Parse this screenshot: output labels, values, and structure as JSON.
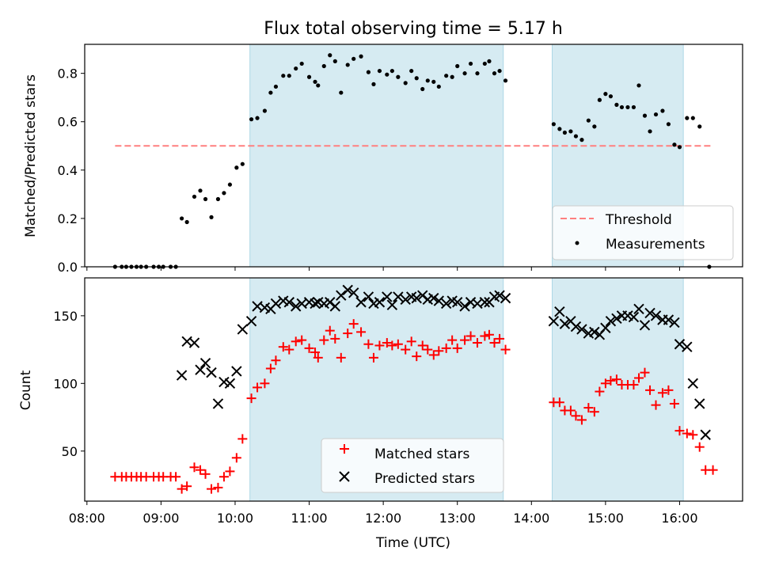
{
  "chart_data": {
    "type": "scatter",
    "title": "Flux total observing time = 5.17 h",
    "xlabel": "Time (UTC)",
    "x_unit": "hours UTC",
    "xlim": [
      7.97,
      16.85
    ],
    "x_ticks": [
      {
        "value": 8,
        "label": "08:00"
      },
      {
        "value": 9,
        "label": "09:00"
      },
      {
        "value": 10,
        "label": "10:00"
      },
      {
        "value": 11,
        "label": "11:00"
      },
      {
        "value": 12,
        "label": "12:00"
      },
      {
        "value": 13,
        "label": "13:00"
      },
      {
        "value": 14,
        "label": "14:00"
      },
      {
        "value": 15,
        "label": "15:00"
      },
      {
        "value": 16,
        "label": "16:00"
      }
    ],
    "shaded_intervals": [
      [
        10.2,
        13.62
      ],
      [
        14.28,
        16.05
      ]
    ],
    "top_panel": {
      "ylabel": "Matched/Predicted stars",
      "ylim": [
        0,
        0.92
      ],
      "y_ticks": [
        {
          "value": 0,
          "label": "0.0"
        },
        {
          "value": 0.2,
          "label": "0.2"
        },
        {
          "value": 0.4,
          "label": "0.4"
        },
        {
          "value": 0.6,
          "label": "0.6"
        },
        {
          "value": 0.8,
          "label": "0.8"
        }
      ],
      "threshold": {
        "name": "Threshold",
        "y": 0.5,
        "x_range": [
          8.38,
          16.45
        ],
        "color": "#ff7f7f"
      },
      "measurements": {
        "name": "Measurements",
        "color": "#000000",
        "points": [
          [
            8.38,
            0.0
          ],
          [
            8.47,
            0.0
          ],
          [
            8.53,
            0.0
          ],
          [
            8.6,
            0.0
          ],
          [
            8.67,
            0.0
          ],
          [
            8.73,
            0.0
          ],
          [
            8.8,
            0.0
          ],
          [
            8.9,
            0.0
          ],
          [
            8.97,
            0.0
          ],
          [
            9.03,
            0.0
          ],
          [
            9.13,
            0.0
          ],
          [
            9.2,
            0.0
          ],
          [
            9.28,
            0.2
          ],
          [
            9.35,
            0.185
          ],
          [
            9.45,
            0.29
          ],
          [
            9.53,
            0.315
          ],
          [
            9.6,
            0.28
          ],
          [
            9.68,
            0.205
          ],
          [
            9.77,
            0.28
          ],
          [
            9.85,
            0.305
          ],
          [
            9.93,
            0.34
          ],
          [
            10.02,
            0.41
          ],
          [
            10.1,
            0.425
          ],
          [
            10.22,
            0.61
          ],
          [
            10.3,
            0.615
          ],
          [
            10.4,
            0.645
          ],
          [
            10.48,
            0.72
          ],
          [
            10.55,
            0.745
          ],
          [
            10.65,
            0.79
          ],
          [
            10.73,
            0.79
          ],
          [
            10.82,
            0.82
          ],
          [
            10.9,
            0.84
          ],
          [
            11.0,
            0.785
          ],
          [
            11.08,
            0.765
          ],
          [
            11.12,
            0.75
          ],
          [
            11.2,
            0.83
          ],
          [
            11.28,
            0.875
          ],
          [
            11.35,
            0.85
          ],
          [
            11.43,
            0.72
          ],
          [
            11.52,
            0.835
          ],
          [
            11.6,
            0.86
          ],
          [
            11.7,
            0.87
          ],
          [
            11.8,
            0.805
          ],
          [
            11.87,
            0.755
          ],
          [
            11.95,
            0.81
          ],
          [
            12.05,
            0.795
          ],
          [
            12.12,
            0.81
          ],
          [
            12.2,
            0.785
          ],
          [
            12.3,
            0.76
          ],
          [
            12.38,
            0.81
          ],
          [
            12.45,
            0.78
          ],
          [
            12.53,
            0.735
          ],
          [
            12.6,
            0.77
          ],
          [
            12.68,
            0.765
          ],
          [
            12.75,
            0.745
          ],
          [
            12.85,
            0.79
          ],
          [
            12.93,
            0.785
          ],
          [
            13.0,
            0.83
          ],
          [
            13.1,
            0.8
          ],
          [
            13.18,
            0.84
          ],
          [
            13.27,
            0.8
          ],
          [
            13.37,
            0.84
          ],
          [
            13.43,
            0.85
          ],
          [
            13.5,
            0.8
          ],
          [
            13.57,
            0.81
          ],
          [
            13.65,
            0.77
          ],
          [
            14.3,
            0.59
          ],
          [
            14.38,
            0.57
          ],
          [
            14.45,
            0.555
          ],
          [
            14.53,
            0.56
          ],
          [
            14.6,
            0.54
          ],
          [
            14.68,
            0.525
          ],
          [
            14.77,
            0.605
          ],
          [
            14.85,
            0.58
          ],
          [
            14.92,
            0.69
          ],
          [
            15.0,
            0.715
          ],
          [
            15.07,
            0.705
          ],
          [
            15.15,
            0.67
          ],
          [
            15.22,
            0.66
          ],
          [
            15.3,
            0.66
          ],
          [
            15.38,
            0.66
          ],
          [
            15.45,
            0.75
          ],
          [
            15.53,
            0.625
          ],
          [
            15.6,
            0.56
          ],
          [
            15.68,
            0.63
          ],
          [
            15.77,
            0.645
          ],
          [
            15.85,
            0.59
          ],
          [
            15.93,
            0.505
          ],
          [
            16.0,
            0.495
          ],
          [
            16.1,
            0.615
          ],
          [
            16.18,
            0.615
          ],
          [
            16.27,
            0.58
          ],
          [
            16.4,
            0.0
          ]
        ]
      },
      "legend": [
        "Threshold",
        "Measurements"
      ]
    },
    "bottom_panel": {
      "ylabel": "Count",
      "ylim": [
        13,
        178
      ],
      "y_ticks": [
        {
          "value": 50,
          "label": "50"
        },
        {
          "value": 100,
          "label": "100"
        },
        {
          "value": 150,
          "label": "150"
        }
      ],
      "series": [
        {
          "name": "Matched stars",
          "marker": "+",
          "color": "#ff0000",
          "points": [
            [
              8.38,
              31
            ],
            [
              8.47,
              31
            ],
            [
              8.53,
              31
            ],
            [
              8.6,
              31
            ],
            [
              8.67,
              31
            ],
            [
              8.73,
              31
            ],
            [
              8.8,
              31
            ],
            [
              8.9,
              31
            ],
            [
              8.97,
              31
            ],
            [
              9.03,
              31
            ],
            [
              9.13,
              31
            ],
            [
              9.2,
              31
            ],
            [
              9.28,
              22
            ],
            [
              9.35,
              24
            ],
            [
              9.45,
              38
            ],
            [
              9.53,
              36
            ],
            [
              9.6,
              33
            ],
            [
              9.68,
              22
            ],
            [
              9.77,
              23
            ],
            [
              9.85,
              31
            ],
            [
              9.93,
              35
            ],
            [
              10.02,
              45
            ],
            [
              10.1,
              59
            ],
            [
              10.22,
              89
            ],
            [
              10.3,
              97
            ],
            [
              10.4,
              100
            ],
            [
              10.48,
              111
            ],
            [
              10.55,
              117
            ],
            [
              10.65,
              127
            ],
            [
              10.73,
              125
            ],
            [
              10.82,
              131
            ],
            [
              10.9,
              132
            ],
            [
              11.0,
              126
            ],
            [
              11.08,
              123
            ],
            [
              11.12,
              119
            ],
            [
              11.2,
              132
            ],
            [
              11.28,
              139
            ],
            [
              11.35,
              133
            ],
            [
              11.43,
              119
            ],
            [
              11.52,
              137
            ],
            [
              11.6,
              144
            ],
            [
              11.7,
              138
            ],
            [
              11.8,
              129
            ],
            [
              11.87,
              119
            ],
            [
              11.95,
              128
            ],
            [
              12.05,
              130
            ],
            [
              12.12,
              128
            ],
            [
              12.2,
              129
            ],
            [
              12.3,
              125
            ],
            [
              12.38,
              131
            ],
            [
              12.45,
              120
            ],
            [
              12.53,
              128
            ],
            [
              12.6,
              125
            ],
            [
              12.68,
              121
            ],
            [
              12.75,
              124
            ],
            [
              12.85,
              126
            ],
            [
              12.93,
              132
            ],
            [
              13.0,
              126
            ],
            [
              13.1,
              132
            ],
            [
              13.18,
              135
            ],
            [
              13.27,
              130
            ],
            [
              13.37,
              135
            ],
            [
              13.43,
              136
            ],
            [
              13.5,
              130
            ],
            [
              13.57,
              133
            ],
            [
              13.65,
              125
            ],
            [
              14.3,
              86
            ],
            [
              14.38,
              86
            ],
            [
              14.45,
              80
            ],
            [
              14.53,
              80
            ],
            [
              14.6,
              76
            ],
            [
              14.68,
              73
            ],
            [
              14.77,
              82
            ],
            [
              14.85,
              79
            ],
            [
              14.92,
              94
            ],
            [
              15.0,
              100
            ],
            [
              15.07,
              102
            ],
            [
              15.15,
              103
            ],
            [
              15.22,
              99
            ],
            [
              15.3,
              99
            ],
            [
              15.38,
              99
            ],
            [
              15.45,
              104
            ],
            [
              15.53,
              108
            ],
            [
              15.6,
              95
            ],
            [
              15.68,
              84
            ],
            [
              15.77,
              93
            ],
            [
              15.85,
              95
            ],
            [
              15.93,
              85
            ],
            [
              16.0,
              65
            ],
            [
              16.1,
              63
            ],
            [
              16.18,
              62
            ],
            [
              16.27,
              53
            ],
            [
              16.35,
              36
            ],
            [
              16.45,
              36
            ]
          ]
        },
        {
          "name": "Predicted stars",
          "marker": "x",
          "color": "#000000",
          "points": [
            [
              9.28,
              106
            ],
            [
              9.35,
              131
            ],
            [
              9.45,
              130
            ],
            [
              9.53,
              110
            ],
            [
              9.6,
              115
            ],
            [
              9.68,
              108
            ],
            [
              9.77,
              85
            ],
            [
              9.85,
              101
            ],
            [
              9.93,
              100
            ],
            [
              10.02,
              109
            ],
            [
              10.1,
              140
            ],
            [
              10.22,
              146
            ],
            [
              10.3,
              157
            ],
            [
              10.4,
              156
            ],
            [
              10.48,
              155
            ],
            [
              10.55,
              159
            ],
            [
              10.65,
              161
            ],
            [
              10.73,
              160
            ],
            [
              10.82,
              157
            ],
            [
              10.9,
              159
            ],
            [
              11.0,
              160
            ],
            [
              11.08,
              159
            ],
            [
              11.12,
              160
            ],
            [
              11.2,
              159
            ],
            [
              11.28,
              160
            ],
            [
              11.35,
              157
            ],
            [
              11.43,
              165
            ],
            [
              11.52,
              169
            ],
            [
              11.6,
              167
            ],
            [
              11.7,
              160
            ],
            [
              11.8,
              164
            ],
            [
              11.87,
              159
            ],
            [
              11.95,
              160
            ],
            [
              12.05,
              164
            ],
            [
              12.12,
              158
            ],
            [
              12.2,
              164
            ],
            [
              12.3,
              162
            ],
            [
              12.38,
              164
            ],
            [
              12.45,
              163
            ],
            [
              12.53,
              165
            ],
            [
              12.6,
              162
            ],
            [
              12.68,
              163
            ],
            [
              12.75,
              161
            ],
            [
              12.85,
              159
            ],
            [
              12.93,
              161
            ],
            [
              13.0,
              160
            ],
            [
              13.1,
              157
            ],
            [
              13.18,
              160
            ],
            [
              13.27,
              159
            ],
            [
              13.37,
              160
            ],
            [
              13.43,
              160
            ],
            [
              13.5,
              164
            ],
            [
              13.57,
              165
            ],
            [
              13.65,
              163
            ],
            [
              14.3,
              146
            ],
            [
              14.38,
              153
            ],
            [
              14.45,
              144
            ],
            [
              14.53,
              146
            ],
            [
              14.6,
              142
            ],
            [
              14.68,
              140
            ],
            [
              14.77,
              137
            ],
            [
              14.85,
              138
            ],
            [
              14.92,
              136
            ],
            [
              15.0,
              141
            ],
            [
              15.07,
              146
            ],
            [
              15.15,
              148
            ],
            [
              15.22,
              150
            ],
            [
              15.3,
              150
            ],
            [
              15.38,
              149
            ],
            [
              15.45,
              155
            ],
            [
              15.53,
              143
            ],
            [
              15.6,
              152
            ],
            [
              15.68,
              150
            ],
            [
              15.77,
              147
            ],
            [
              15.85,
              147
            ],
            [
              15.93,
              145
            ],
            [
              16.0,
              129
            ],
            [
              16.1,
              127
            ],
            [
              16.18,
              100
            ],
            [
              16.27,
              85
            ],
            [
              16.35,
              62
            ]
          ]
        }
      ],
      "legend": [
        "Matched stars",
        "Predicted stars"
      ]
    }
  }
}
